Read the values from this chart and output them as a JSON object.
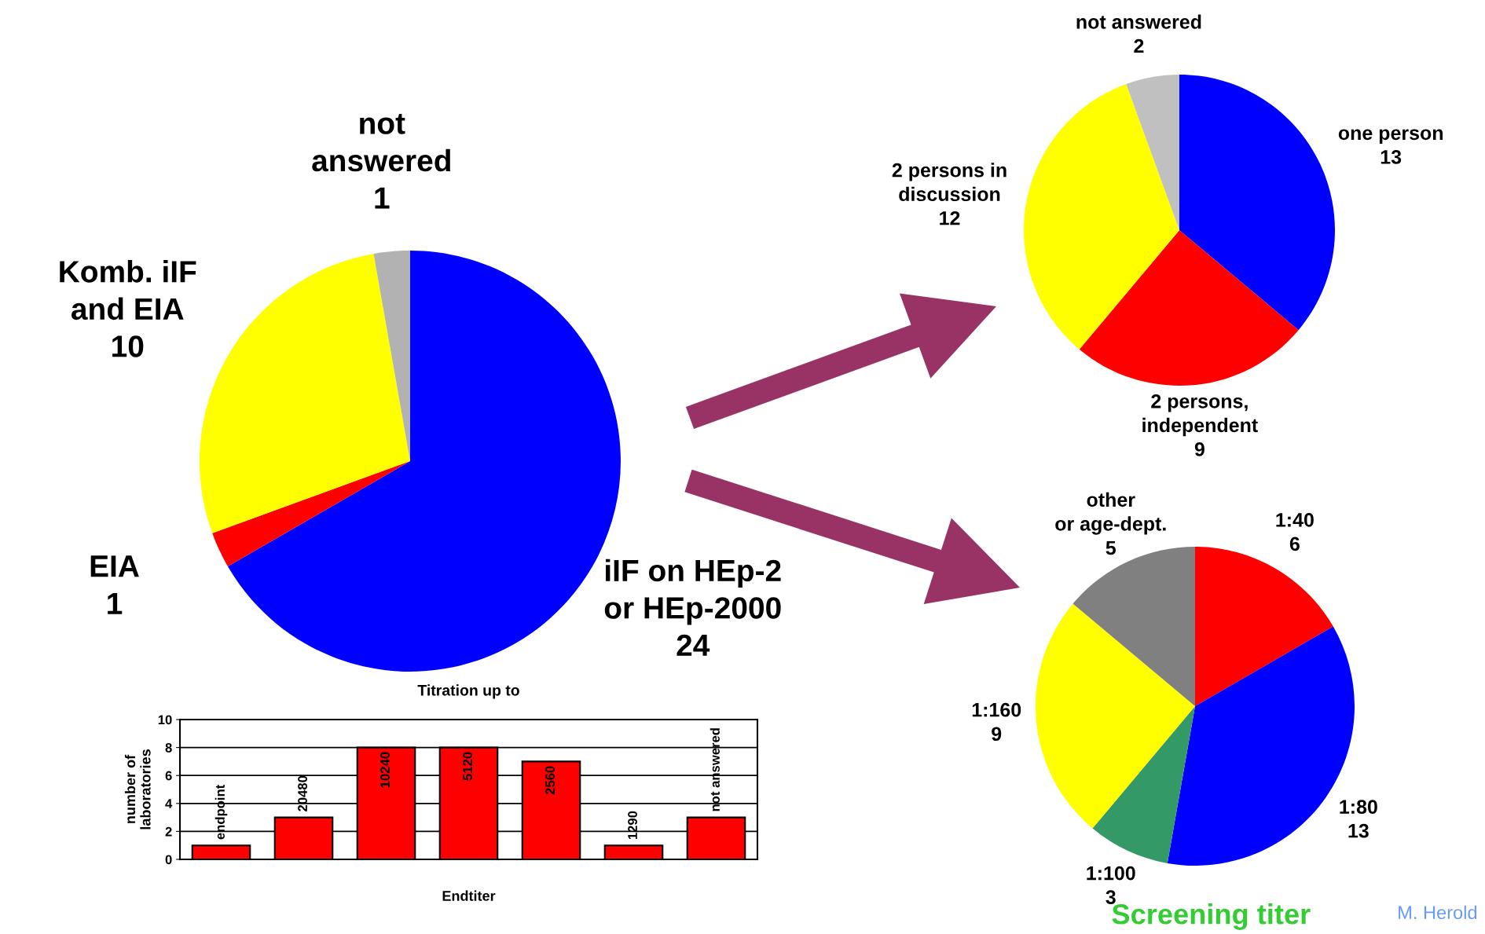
{
  "chart_data": [
    {
      "type": "pie",
      "categories": [
        "iIF on HEp-2\nor HEp-2000",
        "EIA",
        "Komb. iIF\nand EIA",
        "not\nanswered"
      ],
      "values": [
        24,
        1,
        10,
        1
      ],
      "colors": [
        "#0000ff",
        "#ff0000",
        "#ffff00",
        "#b2b2b2"
      ],
      "data_labels": true
    },
    {
      "type": "bar",
      "title": "Titration up to",
      "xlabel": "Endtiter",
      "ylabel": "number of\nlaboratories",
      "categories": [
        "endpoint",
        "20480",
        "10240",
        "5120",
        "2560",
        "1290",
        "not answered"
      ],
      "values": [
        1,
        3,
        8,
        8,
        7,
        1,
        3
      ],
      "color": "#ff0000",
      "ylim": [
        0,
        10
      ],
      "yticks": [
        0,
        2,
        4,
        6,
        8,
        10
      ],
      "grid": "y"
    },
    {
      "type": "pie",
      "categories": [
        "one person",
        "2 persons,\nindependent",
        "2 persons in\ndiscussion",
        "not answered"
      ],
      "values": [
        13,
        9,
        12,
        2
      ],
      "colors": [
        "#0000ff",
        "#ff0000",
        "#ffff00",
        "#c0c0c0"
      ],
      "data_labels": true
    },
    {
      "type": "pie",
      "title": "Screening titer",
      "categories": [
        "1:40",
        "1:80",
        "1:100",
        "1:160",
        "other\nor age-dept."
      ],
      "values": [
        6,
        13,
        3,
        9,
        5
      ],
      "colors": [
        "#ff0000",
        "#0000ff",
        "#339966",
        "#ffff00",
        "#808080"
      ],
      "data_labels": true,
      "annotations": [
        "M. Herold"
      ]
    }
  ]
}
